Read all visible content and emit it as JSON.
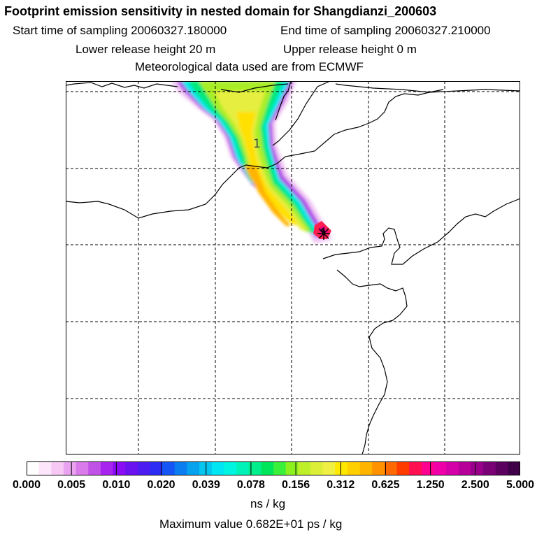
{
  "header": {
    "title": "Footprint emission sensitivity in nested domain for Shangdianzi_200603",
    "start_label": "Start time of sampling 20060327.180000",
    "end_label": "End time of sampling 20060327.210000",
    "lower_label": "Lower release height   20 m",
    "upper_label": "Upper release height    0 m",
    "met_label": "Meteorological data used are from ECMWF"
  },
  "map": {
    "contour_label": "1",
    "receptor_marker": "receptor-star"
  },
  "colorbar": {
    "colors": [
      "#ffffff",
      "#fde6fb",
      "#f7c8f4",
      "#e9a3f0",
      "#d97bea",
      "#c152e8",
      "#a724ef",
      "#8a0cf5",
      "#6a12f0",
      "#4d1cf0",
      "#2c2cf5",
      "#1456f5",
      "#0a7df0",
      "#06a2ee",
      "#05c6ee",
      "#00e6f2",
      "#00f5e0",
      "#00f2b8",
      "#00ee8c",
      "#00e65a",
      "#3af03a",
      "#8cf01e",
      "#bef02a",
      "#dcee38",
      "#f0f044",
      "#ffe800",
      "#ffd000",
      "#ffb400",
      "#ff9200",
      "#ff6a00",
      "#ff3c00",
      "#ff1050",
      "#ff0090",
      "#f000a8",
      "#d400a8",
      "#b60098",
      "#98008a",
      "#7a0076",
      "#5c0060",
      "#400048"
    ],
    "ticks": [
      "0.000",
      "0.005",
      "0.010",
      "0.020",
      "0.039",
      "0.078",
      "0.156",
      "0.312",
      "0.625",
      "1.250",
      "2.500",
      "5.000"
    ],
    "units": "ns / kg"
  },
  "footer": {
    "max_value": "Maximum value  0.682E+01 ps / kg"
  }
}
